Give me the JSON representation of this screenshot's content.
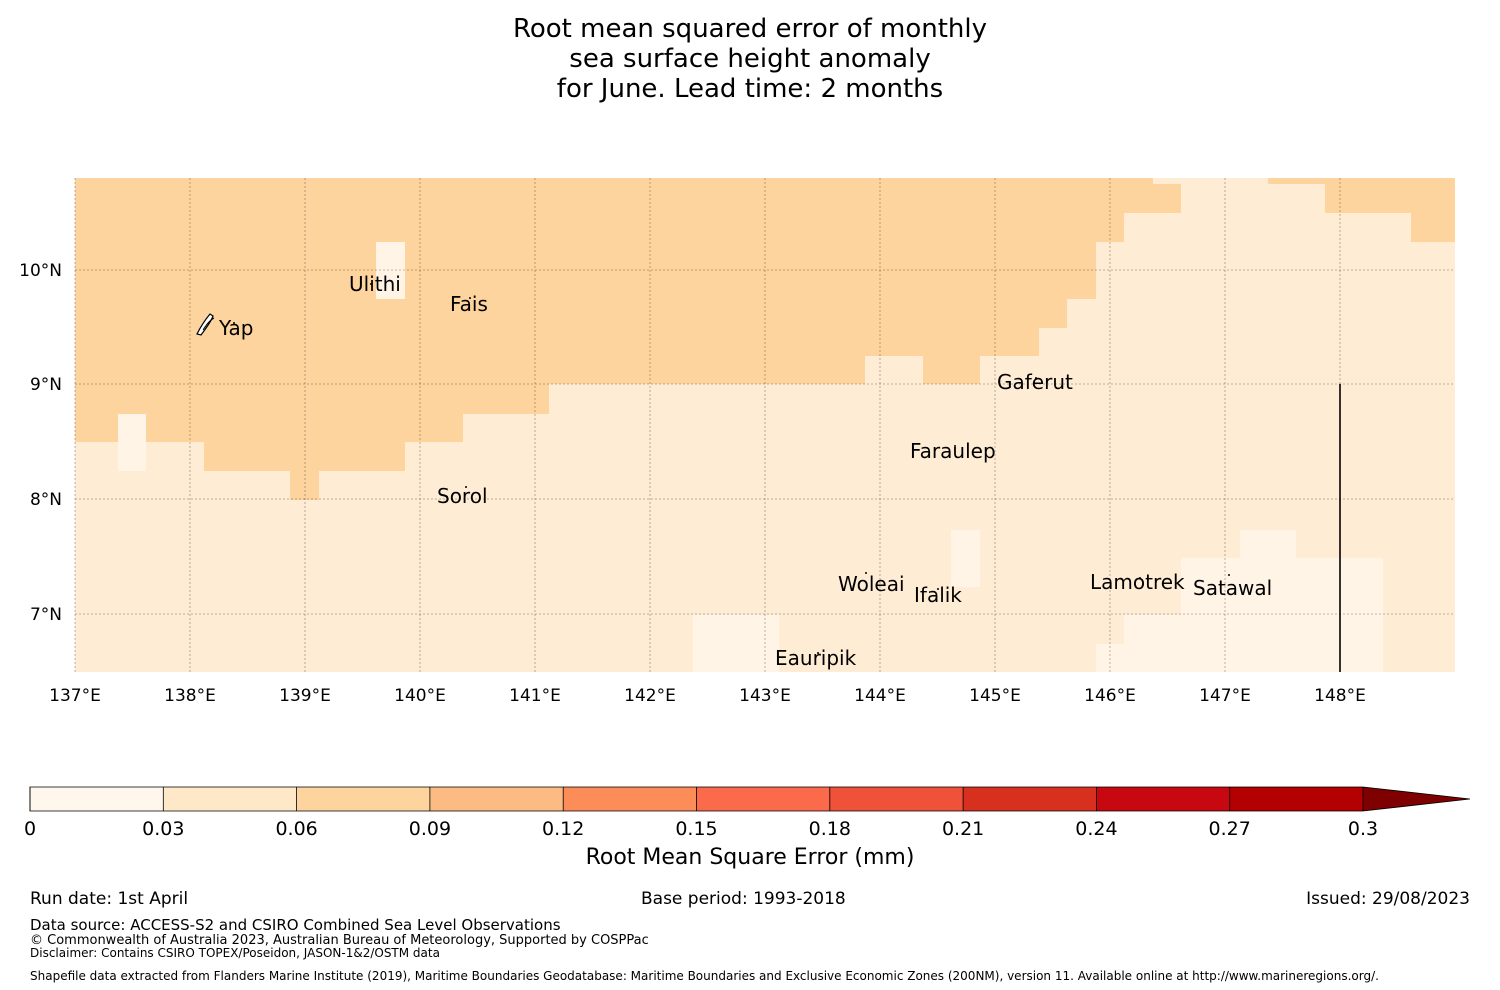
{
  "title": {
    "line1": "Root mean squared error of monthly",
    "line2": "sea surface height anomaly",
    "line3": "for June. Lead time: 2 months"
  },
  "map": {
    "lat_ticks": [
      "10°N",
      "9°N",
      "8°N",
      "7°N"
    ],
    "lon_ticks": [
      "137°E",
      "138°E",
      "139°E",
      "140°E",
      "141°E",
      "142°E",
      "143°E",
      "144°E",
      "145°E",
      "146°E",
      "147°E",
      "148°E"
    ],
    "islands": [
      "Yap",
      "Ulithi",
      "Fais",
      "Gaferut",
      "Faraulep",
      "Sorol",
      "Woleai",
      "Ifalik",
      "Lamotrek",
      "Satawal",
      "Eauripik"
    ],
    "colors": {
      "low": "#feecd4",
      "mid": "#fdd49e",
      "pale": "#fff4e6"
    }
  },
  "colorbar": {
    "ticks": [
      "0",
      "0.03",
      "0.06",
      "0.09",
      "0.12",
      "0.15",
      "0.18",
      "0.21",
      "0.24",
      "0.27",
      "0.3"
    ],
    "colors": [
      "#fff7ec",
      "#fee8c8",
      "#fdd49e",
      "#fdbb84",
      "#fc8d59",
      "#fb6a4a",
      "#ef5139",
      "#d7301f",
      "#c80811",
      "#b30000",
      "#8b0000"
    ],
    "extend_color": "#7f0000",
    "label": "Root Mean Square Error (mm)"
  },
  "footer": {
    "run_date": "Run date: 1st April",
    "base_period": "Base period: 1993-2018",
    "issued": "Issued: 29/08/2023",
    "data_source": "Data source: ACCESS-S2 and CSIRO Combined Sea Level Observations",
    "copyright": "© Commonwealth of Australia 2023, Australian Bureau of Meteorology, Supported by COSPPac",
    "disclaimer": "Disclaimer: Contains CSIRO TOPEX/Poseidon, JASON-1&2/OSTM data",
    "shapefile": "Shapefile data extracted from Flanders Marine Institute (2019), Maritime Boundaries Geodatabase: Maritime Boundaries and Exclusive Economic Zones (200NM), version 11. Available online at http://www.marineregions.org/."
  }
}
